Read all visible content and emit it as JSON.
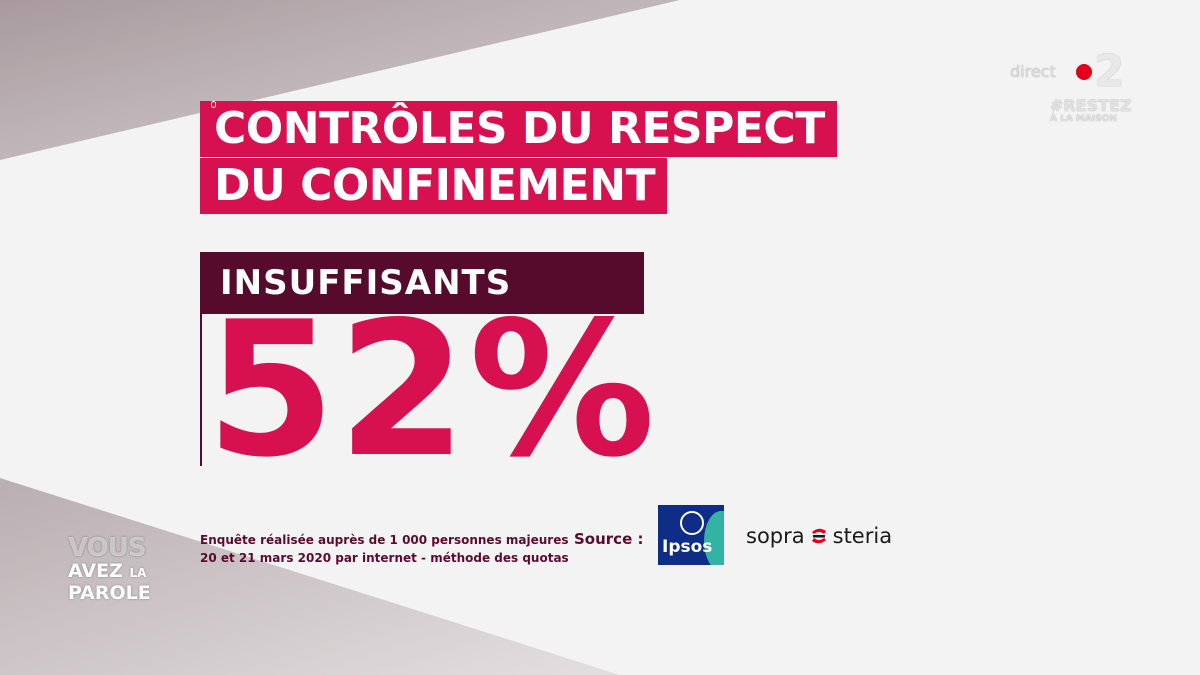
{
  "title": {
    "line1": "CONTRÔLES DU RESPECT",
    "line2": "DU CONFINEMENT"
  },
  "result": {
    "label": "INSUFFISANTS",
    "value_text": "52%",
    "value_percent": 52
  },
  "footnote": {
    "line1": "Enquête réalisée auprès de 1 000 personnes majeures",
    "line2": "20 et 21 mars 2020 par internet - méthode des quotas"
  },
  "source": {
    "label": "Source :",
    "ipsos": "Ipsos",
    "sopra_left": "sopra",
    "sopra_right": "steria"
  },
  "channel": {
    "direct": "direct",
    "number": "2",
    "tag_line1": "#RESTEZ",
    "tag_line2": "À LA MAISON"
  },
  "show": {
    "line1": "VOUS",
    "line2_a": "AVEZ",
    "line2_b": "LA",
    "line3": "PAROLE"
  },
  "colors": {
    "accent": "#d7114f",
    "dark": "#570b2c",
    "background": "#f3f3f3"
  },
  "icons": {
    "ipsos": "ipsos-logo-icon",
    "sopra": "sopra-steria-logo-icon",
    "live_dot": "live-dot-icon"
  }
}
